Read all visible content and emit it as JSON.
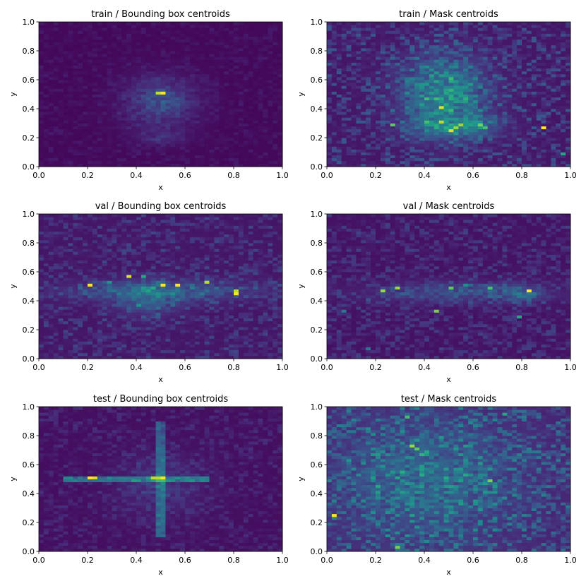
{
  "figure": {
    "colormap": "viridis",
    "colors": {
      "low": "#440154",
      "mid": "#21918c",
      "high": "#fde725"
    }
  },
  "chart_data": [
    {
      "type": "heatmap",
      "title": "train / Bounding box centroids",
      "xlabel": "x",
      "ylabel": "y",
      "xlim": [
        0,
        1
      ],
      "ylim": [
        0,
        1
      ],
      "xticks": [
        "0.0",
        "0.2",
        "0.4",
        "0.6",
        "0.8",
        "1.0"
      ],
      "yticks": [
        "0.0",
        "0.2",
        "0.4",
        "0.6",
        "0.8",
        "1.0"
      ],
      "bins": [
        50,
        50
      ],
      "base_level": 0.02,
      "noise": 0.06,
      "blobs": [
        {
          "x": 0.5,
          "y": 0.45,
          "sx": 0.1,
          "sy": 0.12,
          "a": 0.2
        },
        {
          "x": 0.5,
          "y": 0.2,
          "sx": 0.08,
          "sy": 0.04,
          "a": 0.08
        }
      ],
      "lines": [],
      "hotspots": [
        {
          "x": 0.5,
          "y": 0.5,
          "v": 1.0
        },
        {
          "x": 0.48,
          "y": 0.5,
          "v": 0.9
        }
      ]
    },
    {
      "type": "heatmap",
      "title": "train / Mask centroids",
      "xlabel": "x",
      "ylabel": "y",
      "xlim": [
        0,
        1
      ],
      "ylim": [
        0,
        1
      ],
      "xticks": [
        "0.0",
        "0.2",
        "0.4",
        "0.6",
        "0.8",
        "1.0"
      ],
      "yticks": [
        "0.0",
        "0.2",
        "0.4",
        "0.6",
        "0.8",
        "1.0"
      ],
      "bins": [
        50,
        50
      ],
      "base_level": 0.06,
      "noise": 0.22,
      "blobs": [
        {
          "x": 0.48,
          "y": 0.5,
          "sx": 0.12,
          "sy": 0.18,
          "a": 0.38
        },
        {
          "x": 0.52,
          "y": 0.28,
          "sx": 0.12,
          "sy": 0.05,
          "a": 0.25
        }
      ],
      "lines": [],
      "hotspots": [
        {
          "x": 0.46,
          "y": 0.4,
          "v": 0.95
        },
        {
          "x": 0.46,
          "y": 0.3,
          "v": 0.9
        },
        {
          "x": 0.5,
          "y": 0.25,
          "v": 0.95
        },
        {
          "x": 0.52,
          "y": 0.27,
          "v": 0.85
        },
        {
          "x": 0.55,
          "y": 0.28,
          "v": 0.85
        },
        {
          "x": 0.62,
          "y": 0.28,
          "v": 0.8
        },
        {
          "x": 0.64,
          "y": 0.27,
          "v": 0.7
        },
        {
          "x": 0.89,
          "y": 0.27,
          "v": 1.0
        },
        {
          "x": 0.26,
          "y": 0.28,
          "v": 0.75
        },
        {
          "x": 0.4,
          "y": 0.3,
          "v": 0.7
        },
        {
          "x": 0.96,
          "y": 0.08,
          "v": 0.6
        }
      ]
    },
    {
      "type": "heatmap",
      "title": "val / Bounding box centroids",
      "xlabel": "x",
      "ylabel": "y",
      "xlim": [
        0,
        1
      ],
      "ylim": [
        0,
        1
      ],
      "xticks": [
        "0.0",
        "0.2",
        "0.4",
        "0.6",
        "0.8",
        "1.0"
      ],
      "yticks": [
        "0.0",
        "0.2",
        "0.4",
        "0.6",
        "0.8",
        "1.0"
      ],
      "bins": [
        50,
        50
      ],
      "base_level": 0.06,
      "noise": 0.16,
      "blobs": [
        {
          "x": 0.5,
          "y": 0.47,
          "sx": 0.25,
          "sy": 0.05,
          "a": 0.2
        },
        {
          "x": 0.45,
          "y": 0.4,
          "sx": 0.1,
          "sy": 0.08,
          "a": 0.15
        }
      ],
      "lines": [],
      "hotspots": [
        {
          "x": 0.21,
          "y": 0.5,
          "v": 1.0
        },
        {
          "x": 0.36,
          "y": 0.56,
          "v": 0.95
        },
        {
          "x": 0.51,
          "y": 0.5,
          "v": 1.0
        },
        {
          "x": 0.58,
          "y": 0.5,
          "v": 1.0
        },
        {
          "x": 0.69,
          "y": 0.52,
          "v": 0.9
        },
        {
          "x": 0.81,
          "y": 0.45,
          "v": 1.0
        },
        {
          "x": 0.81,
          "y": 0.47,
          "v": 0.9
        },
        {
          "x": 0.43,
          "y": 0.57,
          "v": 0.6
        },
        {
          "x": 0.28,
          "y": 0.53,
          "v": 0.5
        },
        {
          "x": 0.46,
          "y": 0.48,
          "v": 0.6
        },
        {
          "x": 0.41,
          "y": 0.37,
          "v": 0.5
        }
      ]
    },
    {
      "type": "heatmap",
      "title": "val / Mask centroids",
      "xlabel": "x",
      "ylabel": "y",
      "xlim": [
        0,
        1
      ],
      "ylim": [
        0,
        1
      ],
      "xticks": [
        "0.0",
        "0.2",
        "0.4",
        "0.6",
        "0.8",
        "1.0"
      ],
      "yticks": [
        "0.0",
        "0.2",
        "0.4",
        "0.6",
        "0.8",
        "1.0"
      ],
      "bins": [
        50,
        50
      ],
      "base_level": 0.05,
      "noise": 0.15,
      "blobs": [
        {
          "x": 0.55,
          "y": 0.46,
          "sx": 0.25,
          "sy": 0.05,
          "a": 0.18
        },
        {
          "x": 0.8,
          "y": 0.45,
          "sx": 0.05,
          "sy": 0.04,
          "a": 0.15
        }
      ],
      "lines": [],
      "hotspots": [
        {
          "x": 0.82,
          "y": 0.46,
          "v": 1.0
        },
        {
          "x": 0.23,
          "y": 0.46,
          "v": 0.85
        },
        {
          "x": 0.29,
          "y": 0.48,
          "v": 0.85
        },
        {
          "x": 0.44,
          "y": 0.32,
          "v": 0.8
        },
        {
          "x": 0.5,
          "y": 0.48,
          "v": 0.75
        },
        {
          "x": 0.67,
          "y": 0.48,
          "v": 0.7
        },
        {
          "x": 0.79,
          "y": 0.29,
          "v": 0.6
        },
        {
          "x": 0.06,
          "y": 0.33,
          "v": 0.4
        },
        {
          "x": 0.16,
          "y": 0.07,
          "v": 0.4
        },
        {
          "x": 0.56,
          "y": 0.5,
          "v": 0.5
        }
      ]
    },
    {
      "type": "heatmap",
      "title": "test / Bounding box centroids",
      "xlabel": "x",
      "ylabel": "y",
      "xlim": [
        0,
        1
      ],
      "ylim": [
        0,
        1
      ],
      "xticks": [
        "0.0",
        "0.2",
        "0.4",
        "0.6",
        "0.8",
        "1.0"
      ],
      "yticks": [
        "0.0",
        "0.2",
        "0.4",
        "0.6",
        "0.8",
        "1.0"
      ],
      "bins": [
        50,
        50
      ],
      "base_level": 0.04,
      "noise": 0.1,
      "blobs": [
        {
          "x": 0.5,
          "y": 0.45,
          "sx": 0.12,
          "sy": 0.15,
          "a": 0.1
        }
      ],
      "lines": [
        {
          "orient": "h",
          "pos": 0.5,
          "from": 0.1,
          "to": 0.7,
          "a": 0.3
        },
        {
          "orient": "v",
          "pos": 0.5,
          "from": 0.1,
          "to": 0.9,
          "a": 0.22
        }
      ],
      "hotspots": [
        {
          "x": 0.2,
          "y": 0.5,
          "v": 1.0
        },
        {
          "x": 0.22,
          "y": 0.5,
          "v": 0.95
        },
        {
          "x": 0.46,
          "y": 0.5,
          "v": 0.9
        },
        {
          "x": 0.48,
          "y": 0.5,
          "v": 0.9
        },
        {
          "x": 0.5,
          "y": 0.5,
          "v": 1.0
        },
        {
          "x": 0.3,
          "y": 0.5,
          "v": 0.4
        },
        {
          "x": 0.63,
          "y": 0.5,
          "v": 0.4
        }
      ]
    },
    {
      "type": "heatmap",
      "title": "test / Mask centroids",
      "xlabel": "x",
      "ylabel": "y",
      "xlim": [
        0,
        1
      ],
      "ylim": [
        0,
        1
      ],
      "xticks": [
        "0.0",
        "0.2",
        "0.4",
        "0.6",
        "0.8",
        "1.0"
      ],
      "yticks": [
        "0.0",
        "0.2",
        "0.4",
        "0.6",
        "0.8",
        "1.0"
      ],
      "bins": [
        50,
        50
      ],
      "base_level": 0.1,
      "noise": 0.3,
      "blobs": [
        {
          "x": 0.4,
          "y": 0.5,
          "sx": 0.25,
          "sy": 0.3,
          "a": 0.2
        }
      ],
      "lines": [],
      "hotspots": [
        {
          "x": 0.03,
          "y": 0.25,
          "v": 1.0
        },
        {
          "x": 0.29,
          "y": 0.03,
          "v": 0.8
        },
        {
          "x": 0.35,
          "y": 0.73,
          "v": 0.85
        },
        {
          "x": 0.37,
          "y": 0.7,
          "v": 0.75
        },
        {
          "x": 0.66,
          "y": 0.48,
          "v": 0.8
        },
        {
          "x": 0.33,
          "y": 0.93,
          "v": 0.7
        },
        {
          "x": 0.39,
          "y": 0.66,
          "v": 0.65
        },
        {
          "x": 0.58,
          "y": 0.53,
          "v": 0.6
        },
        {
          "x": 0.49,
          "y": 0.5,
          "v": 0.6
        },
        {
          "x": 0.72,
          "y": 0.95,
          "v": 0.6
        },
        {
          "x": 0.2,
          "y": 0.44,
          "v": 0.6
        }
      ]
    }
  ]
}
